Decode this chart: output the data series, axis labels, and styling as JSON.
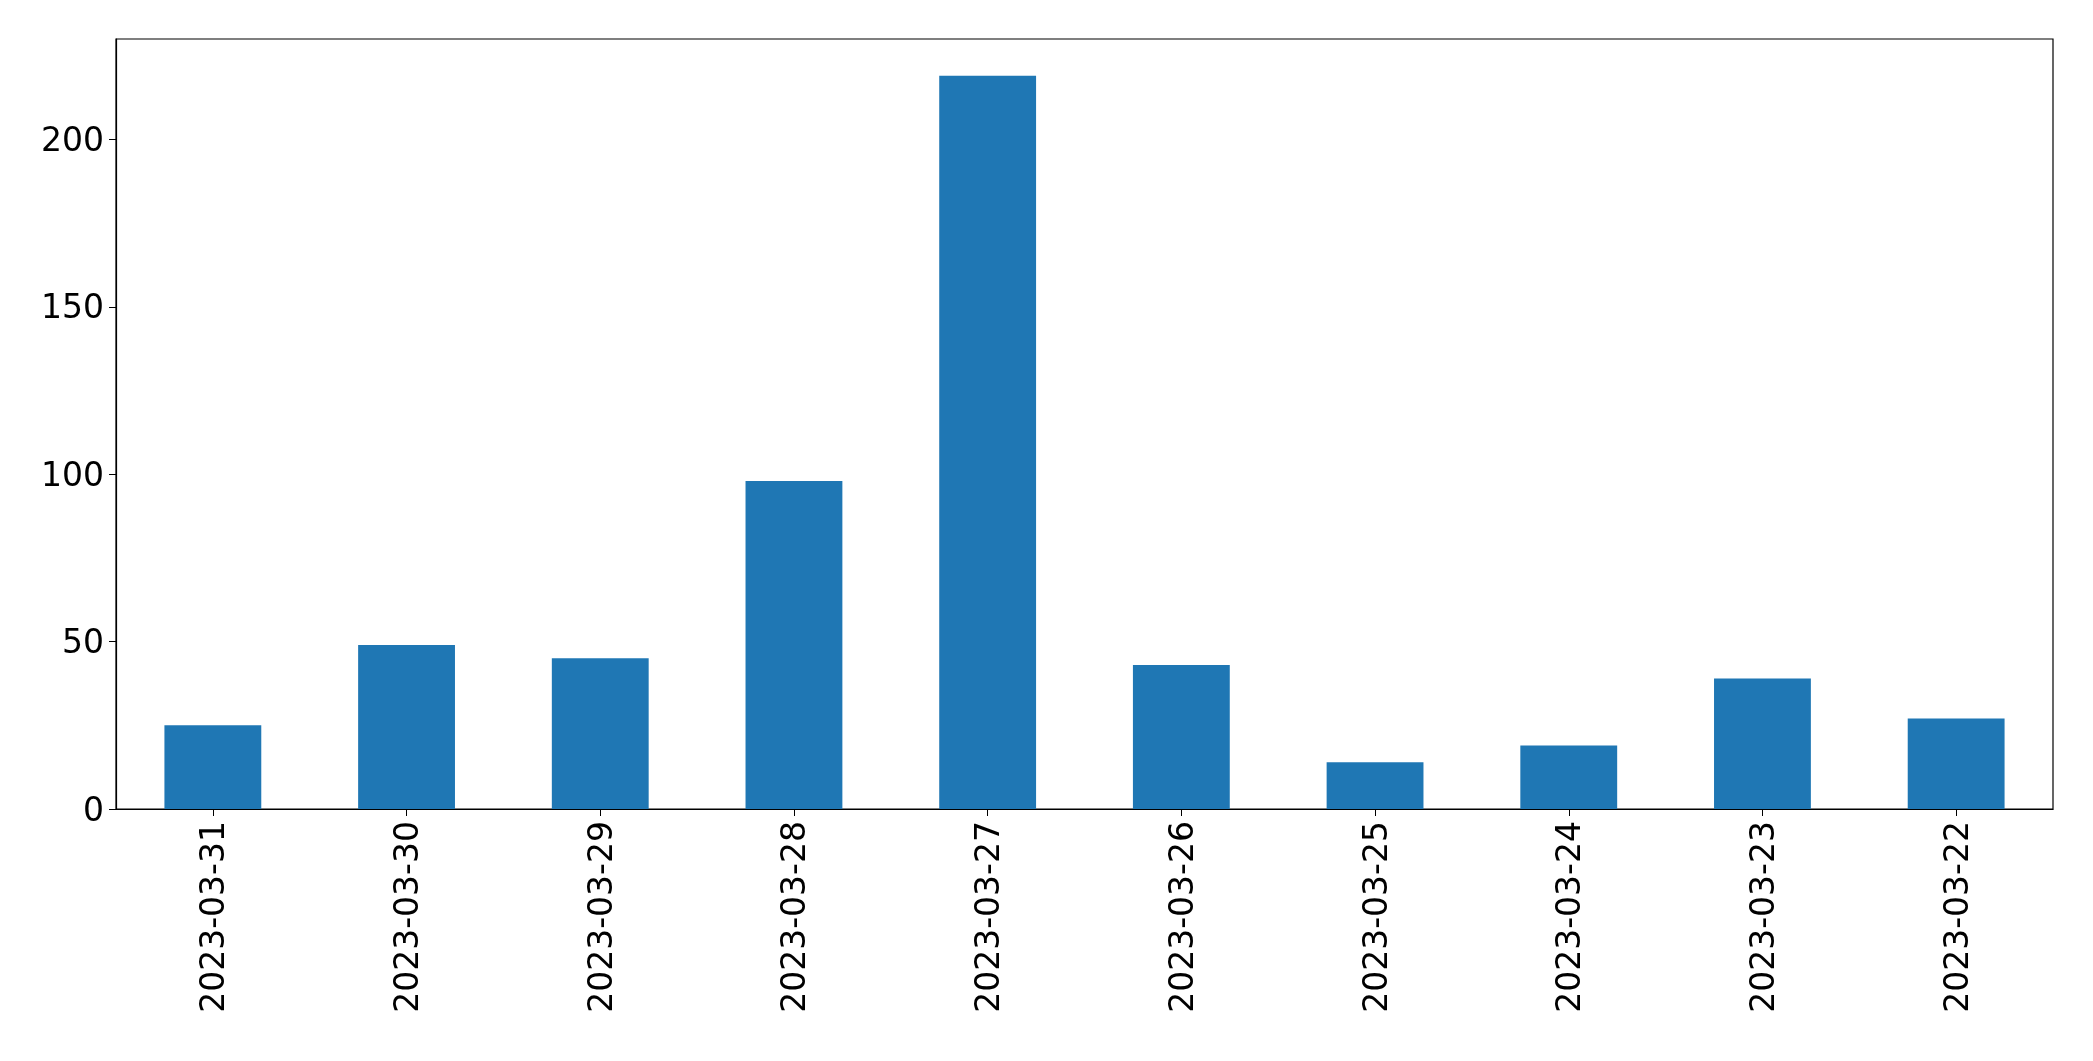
{
  "chart_data": {
    "type": "bar",
    "categories": [
      "2023-03-31",
      "2023-03-30",
      "2023-03-29",
      "2023-03-28",
      "2023-03-27",
      "2023-03-26",
      "2023-03-25",
      "2023-03-24",
      "2023-03-23",
      "2023-03-22"
    ],
    "values": [
      25,
      49,
      45,
      98,
      219,
      43,
      14,
      19,
      39,
      27
    ],
    "color": "#1f77b4",
    "ylim": [
      0,
      230
    ],
    "yticks": [
      0,
      50,
      100,
      150,
      200
    ]
  }
}
